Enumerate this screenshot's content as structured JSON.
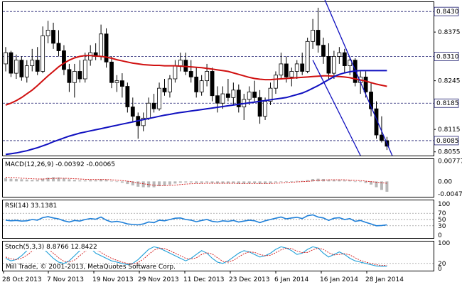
{
  "chart_data": {
    "type": "candlestick",
    "copyright": "Mill Trade, © 2001-2013, MetaQuotes Software Corp.",
    "x_labels": [
      "28 Oct 2013",
      "7 Nov 2013",
      "19 Nov 2013",
      "29 Nov 2013",
      "11 Dec 2013",
      "23 Dec 2013",
      "6 Jan 2014",
      "16 Jan 2014",
      "28 Jan 2014"
    ],
    "main": {
      "ylim": [
        0.8045,
        0.8455
      ],
      "ticks": [
        0.843,
        0.8375,
        0.831,
        0.8245,
        0.8185,
        0.8115,
        0.8055
      ],
      "levels": [
        0.843,
        0.831,
        0.8185,
        0.8085
      ],
      "price_boxes": [
        "0.8430",
        "0.8310",
        "0.8185",
        "0.8085"
      ],
      "tick_labels": [
        "0.8375",
        "0.8245",
        "0.8115",
        "0.8055"
      ],
      "candles": [
        [
          0.829,
          0.8335,
          0.827,
          0.832
        ],
        [
          0.832,
          0.8325,
          0.8255,
          0.8265
        ],
        [
          0.8265,
          0.8315,
          0.825,
          0.83
        ],
        [
          0.83,
          0.831,
          0.8245,
          0.8255
        ],
        [
          0.8255,
          0.83,
          0.824,
          0.8285
        ],
        [
          0.8285,
          0.833,
          0.827,
          0.83
        ],
        [
          0.83,
          0.8335,
          0.826,
          0.827
        ],
        [
          0.827,
          0.839,
          0.8265,
          0.8365
        ],
        [
          0.8365,
          0.8405,
          0.8345,
          0.838
        ],
        [
          0.838,
          0.84,
          0.833,
          0.8345
        ],
        [
          0.8345,
          0.838,
          0.831,
          0.8325
        ],
        [
          0.8325,
          0.834,
          0.826,
          0.8275
        ],
        [
          0.8275,
          0.829,
          0.8215,
          0.824
        ],
        [
          0.824,
          0.829,
          0.82,
          0.827
        ],
        [
          0.827,
          0.83,
          0.824,
          0.825
        ],
        [
          0.825,
          0.832,
          0.824,
          0.83
        ],
        [
          0.83,
          0.834,
          0.8285,
          0.832
        ],
        [
          0.832,
          0.8345,
          0.83,
          0.831
        ],
        [
          0.831,
          0.8395,
          0.83,
          0.837
        ],
        [
          0.837,
          0.8385,
          0.828,
          0.8295
        ],
        [
          0.8295,
          0.831,
          0.8225,
          0.824
        ],
        [
          0.824,
          0.826,
          0.8215,
          0.8245
        ],
        [
          0.8245,
          0.8265,
          0.82,
          0.823
        ],
        [
          0.823,
          0.824,
          0.816,
          0.8175
        ],
        [
          0.8175,
          0.82,
          0.8135,
          0.815
        ],
        [
          0.815,
          0.816,
          0.809,
          0.8125
        ],
        [
          0.8125,
          0.816,
          0.811,
          0.8145
        ],
        [
          0.8145,
          0.82,
          0.814,
          0.8185
        ],
        [
          0.8185,
          0.821,
          0.816,
          0.817
        ],
        [
          0.817,
          0.824,
          0.8165,
          0.8225
        ],
        [
          0.8225,
          0.825,
          0.8205,
          0.8215
        ],
        [
          0.8215,
          0.826,
          0.82,
          0.825
        ],
        [
          0.825,
          0.83,
          0.824,
          0.8285
        ],
        [
          0.8285,
          0.832,
          0.827,
          0.83
        ],
        [
          0.83,
          0.832,
          0.826,
          0.827
        ],
        [
          0.827,
          0.83,
          0.824,
          0.8255
        ],
        [
          0.8255,
          0.828,
          0.82,
          0.8215
        ],
        [
          0.8215,
          0.826,
          0.8205,
          0.8245
        ],
        [
          0.8245,
          0.829,
          0.823,
          0.827
        ],
        [
          0.827,
          0.828,
          0.819,
          0.8205
        ],
        [
          0.8205,
          0.823,
          0.816,
          0.8185
        ],
        [
          0.8185,
          0.823,
          0.817,
          0.821
        ],
        [
          0.821,
          0.825,
          0.819,
          0.82
        ],
        [
          0.82,
          0.824,
          0.818,
          0.822
        ],
        [
          0.822,
          0.8235,
          0.816,
          0.8175
        ],
        [
          0.8175,
          0.821,
          0.814,
          0.8195
        ],
        [
          0.8195,
          0.823,
          0.818,
          0.8215
        ],
        [
          0.8215,
          0.8245,
          0.819,
          0.82
        ],
        [
          0.82,
          0.822,
          0.813,
          0.815
        ],
        [
          0.815,
          0.82,
          0.814,
          0.819
        ],
        [
          0.819,
          0.824,
          0.818,
          0.8225
        ],
        [
          0.8225,
          0.827,
          0.821,
          0.826
        ],
        [
          0.826,
          0.832,
          0.825,
          0.829
        ],
        [
          0.829,
          0.831,
          0.824,
          0.8255
        ],
        [
          0.8255,
          0.828,
          0.823,
          0.827
        ],
        [
          0.827,
          0.83,
          0.825,
          0.829
        ],
        [
          0.829,
          0.832,
          0.826,
          0.827
        ],
        [
          0.827,
          0.836,
          0.8265,
          0.835
        ],
        [
          0.835,
          0.841,
          0.833,
          0.838
        ],
        [
          0.838,
          0.844,
          0.832,
          0.834
        ],
        [
          0.834,
          0.836,
          0.829,
          0.831
        ],
        [
          0.831,
          0.8345,
          0.825,
          0.8265
        ],
        [
          0.8265,
          0.8325,
          0.825,
          0.831
        ],
        [
          0.831,
          0.8335,
          0.829,
          0.832
        ],
        [
          0.832,
          0.833,
          0.8265,
          0.8285
        ],
        [
          0.8285,
          0.831,
          0.826,
          0.83
        ],
        [
          0.83,
          0.8305,
          0.823,
          0.824
        ],
        [
          0.824,
          0.827,
          0.821,
          0.8255
        ],
        [
          0.8255,
          0.827,
          0.82,
          0.8215
        ],
        [
          0.8215,
          0.824,
          0.815,
          0.817
        ],
        [
          0.817,
          0.819,
          0.809,
          0.81
        ],
        [
          0.81,
          0.815,
          0.808,
          0.8085
        ],
        [
          0.8085,
          0.8095,
          0.806,
          0.807
        ]
      ],
      "ma_red": [
        0.818,
        0.8185,
        0.8192,
        0.82,
        0.821,
        0.822,
        0.8232,
        0.8245,
        0.8258,
        0.827,
        0.8282,
        0.8292,
        0.83,
        0.8306,
        0.831,
        0.8312,
        0.8312,
        0.8311,
        0.831,
        0.8308,
        0.8305,
        0.8301,
        0.8298,
        0.8295,
        0.8292,
        0.829,
        0.8288,
        0.8287,
        0.8286,
        0.8286,
        0.8285,
        0.8285,
        0.8285,
        0.8284,
        0.8283,
        0.8282,
        0.8281,
        0.828,
        0.8278,
        0.8276,
        0.8274,
        0.8272,
        0.827,
        0.8266,
        0.8262,
        0.8258,
        0.8254,
        0.8251,
        0.8249,
        0.8248,
        0.8248,
        0.8249,
        0.825,
        0.8251,
        0.8252,
        0.8253,
        0.8254,
        0.8255,
        0.8256,
        0.8257,
        0.8258,
        0.8258,
        0.8257,
        0.8256,
        0.8255,
        0.8253,
        0.825,
        0.8247,
        0.8244,
        0.824,
        0.8236,
        0.8233,
        0.823
      ],
      "ma_blue": [
        0.8048,
        0.805,
        0.8052,
        0.8055,
        0.8058,
        0.8062,
        0.8066,
        0.8071,
        0.8076,
        0.8082,
        0.8087,
        0.8092,
        0.8097,
        0.8101,
        0.8105,
        0.8108,
        0.8111,
        0.8114,
        0.8117,
        0.812,
        0.8123,
        0.8126,
        0.8129,
        0.8132,
        0.8135,
        0.8138,
        0.8141,
        0.8144,
        0.8147,
        0.815,
        0.8153,
        0.8155,
        0.8158,
        0.816,
        0.8162,
        0.8164,
        0.8166,
        0.8168,
        0.817,
        0.8172,
        0.8174,
        0.8176,
        0.8178,
        0.818,
        0.8182,
        0.8184,
        0.8186,
        0.8188,
        0.819,
        0.8192,
        0.8194,
        0.8196,
        0.8198,
        0.82,
        0.8204,
        0.8208,
        0.8212,
        0.8218,
        0.8225,
        0.8232,
        0.824,
        0.8248,
        0.8256,
        0.8262,
        0.8266,
        0.8269,
        0.8271,
        0.8272,
        0.8272,
        0.8272,
        0.8272,
        0.8272,
        0.8272
      ],
      "channel_upper": [
        [
          60,
          0.847
        ],
        [
          73,
          0.8045
        ]
      ],
      "channel_lower": [
        [
          58,
          0.83
        ],
        [
          67,
          0.8045
        ]
      ]
    },
    "macd": {
      "label": "MACD(12,26,9) -0.00392 -0.00065",
      "ylim": [
        -0.0058,
        0.0084
      ],
      "ticks": [
        0.00777,
        0.0,
        -0.0047
      ],
      "tick_labels": [
        "0.00777",
        "0.00",
        "-0.0047"
      ],
      "histogram": [
        0.0012,
        0.001,
        0.0009,
        0.0008,
        0.0007,
        0.0006,
        0.0006,
        0.001,
        0.0014,
        0.0016,
        0.0015,
        0.0012,
        0.0008,
        0.0006,
        0.0004,
        0.0004,
        0.0005,
        0.0005,
        0.0008,
        0.0006,
        0.0002,
        -0.0002,
        -0.0005,
        -0.001,
        -0.0015,
        -0.002,
        -0.0022,
        -0.0022,
        -0.0022,
        -0.0018,
        -0.0016,
        -0.0012,
        -0.0008,
        -0.0005,
        -0.0004,
        -0.0004,
        -0.0006,
        -0.0006,
        -0.0004,
        -0.0006,
        -0.0008,
        -0.0008,
        -0.0008,
        -0.0007,
        -0.0009,
        -0.0009,
        -0.0008,
        -0.0007,
        -0.0009,
        -0.0009,
        -0.0007,
        -0.0004,
        0.0,
        0.0001,
        0.0001,
        0.0002,
        0.0002,
        0.0005,
        0.0009,
        0.001,
        0.0009,
        0.0006,
        0.0006,
        0.0006,
        0.0004,
        0.0004,
        0.0,
        -0.0002,
        -0.0006,
        -0.0012,
        -0.0022,
        -0.0032,
        -0.0039
      ],
      "signal": [
        0.0016,
        0.0015,
        0.0014,
        0.0012,
        0.0011,
        0.001,
        0.0009,
        0.0009,
        0.001,
        0.0011,
        0.0012,
        0.0012,
        0.0011,
        0.001,
        0.0009,
        0.0008,
        0.0007,
        0.0007,
        0.0007,
        0.0007,
        0.0006,
        0.0005,
        0.0003,
        0.0001,
        -0.0002,
        -0.0006,
        -0.0009,
        -0.0012,
        -0.0014,
        -0.0016,
        -0.0016,
        -0.0015,
        -0.0014,
        -0.0012,
        -0.001,
        -0.0009,
        -0.0008,
        -0.0008,
        -0.0007,
        -0.0007,
        -0.0007,
        -0.0007,
        -0.0007,
        -0.0007,
        -0.0008,
        -0.0008,
        -0.0008,
        -0.0008,
        -0.0008,
        -0.0008,
        -0.0008,
        -0.0007,
        -0.0006,
        -0.0004,
        -0.0003,
        -0.0002,
        -0.0001,
        0.0,
        0.0002,
        0.0004,
        0.0005,
        0.0006,
        0.0006,
        0.0006,
        0.0006,
        0.0005,
        0.0004,
        0.0003,
        0.0001,
        -0.0001,
        -0.0003,
        -0.0005,
        -0.0007
      ]
    },
    "rsi": {
      "label": "RSI(14) 33.1381",
      "ylim": [
        0,
        100
      ],
      "ticks": [
        100,
        70,
        50,
        30,
        0
      ],
      "tick_labels": [
        "100",
        "70",
        "50",
        "30",
        "0"
      ],
      "values": [
        48,
        46,
        47,
        45,
        46,
        50,
        48,
        56,
        59,
        55,
        52,
        46,
        42,
        47,
        45,
        50,
        53,
        51,
        58,
        48,
        42,
        44,
        41,
        36,
        34,
        33,
        36,
        42,
        40,
        48,
        46,
        50,
        54,
        55,
        50,
        48,
        43,
        47,
        50,
        44,
        42,
        46,
        44,
        47,
        42,
        45,
        48,
        46,
        40,
        46,
        50,
        54,
        58,
        52,
        55,
        57,
        53,
        62,
        65,
        58,
        55,
        47,
        54,
        56,
        50,
        53,
        44,
        47,
        41,
        36,
        30,
        31,
        33
      ]
    },
    "stoch": {
      "label": "Stoch(5,3,3) 8.8766 12.8422",
      "ylim": [
        0,
        100
      ],
      "ticks": [
        100,
        20,
        0
      ],
      "tick_labels": [
        "100",
        "20",
        "0"
      ],
      "main": [
        40,
        30,
        35,
        50,
        70,
        85,
        88,
        80,
        60,
        40,
        25,
        20,
        30,
        50,
        70,
        85,
        80,
        60,
        50,
        40,
        30,
        25,
        20,
        15,
        20,
        35,
        55,
        75,
        85,
        80,
        70,
        60,
        50,
        40,
        30,
        40,
        55,
        70,
        60,
        40,
        25,
        20,
        30,
        45,
        60,
        70,
        65,
        55,
        45,
        50,
        60,
        75,
        85,
        80,
        70,
        55,
        60,
        75,
        85,
        80,
        60,
        45,
        55,
        65,
        55,
        40,
        30,
        25,
        20,
        15,
        10,
        9,
        9
      ],
      "signal": [
        45,
        38,
        35,
        40,
        52,
        68,
        81,
        84,
        76,
        60,
        42,
        28,
        25,
        33,
        50,
        68,
        78,
        75,
        63,
        50,
        40,
        32,
        25,
        20,
        18,
        23,
        37,
        55,
        72,
        80,
        78,
        70,
        60,
        50,
        40,
        37,
        42,
        55,
        62,
        57,
        42,
        28,
        25,
        32,
        45,
        58,
        65,
        63,
        55,
        50,
        52,
        62,
        73,
        80,
        78,
        68,
        62,
        63,
        73,
        80,
        75,
        62,
        53,
        55,
        58,
        53,
        42,
        32,
        25,
        20,
        15,
        12,
        13
      ]
    }
  }
}
